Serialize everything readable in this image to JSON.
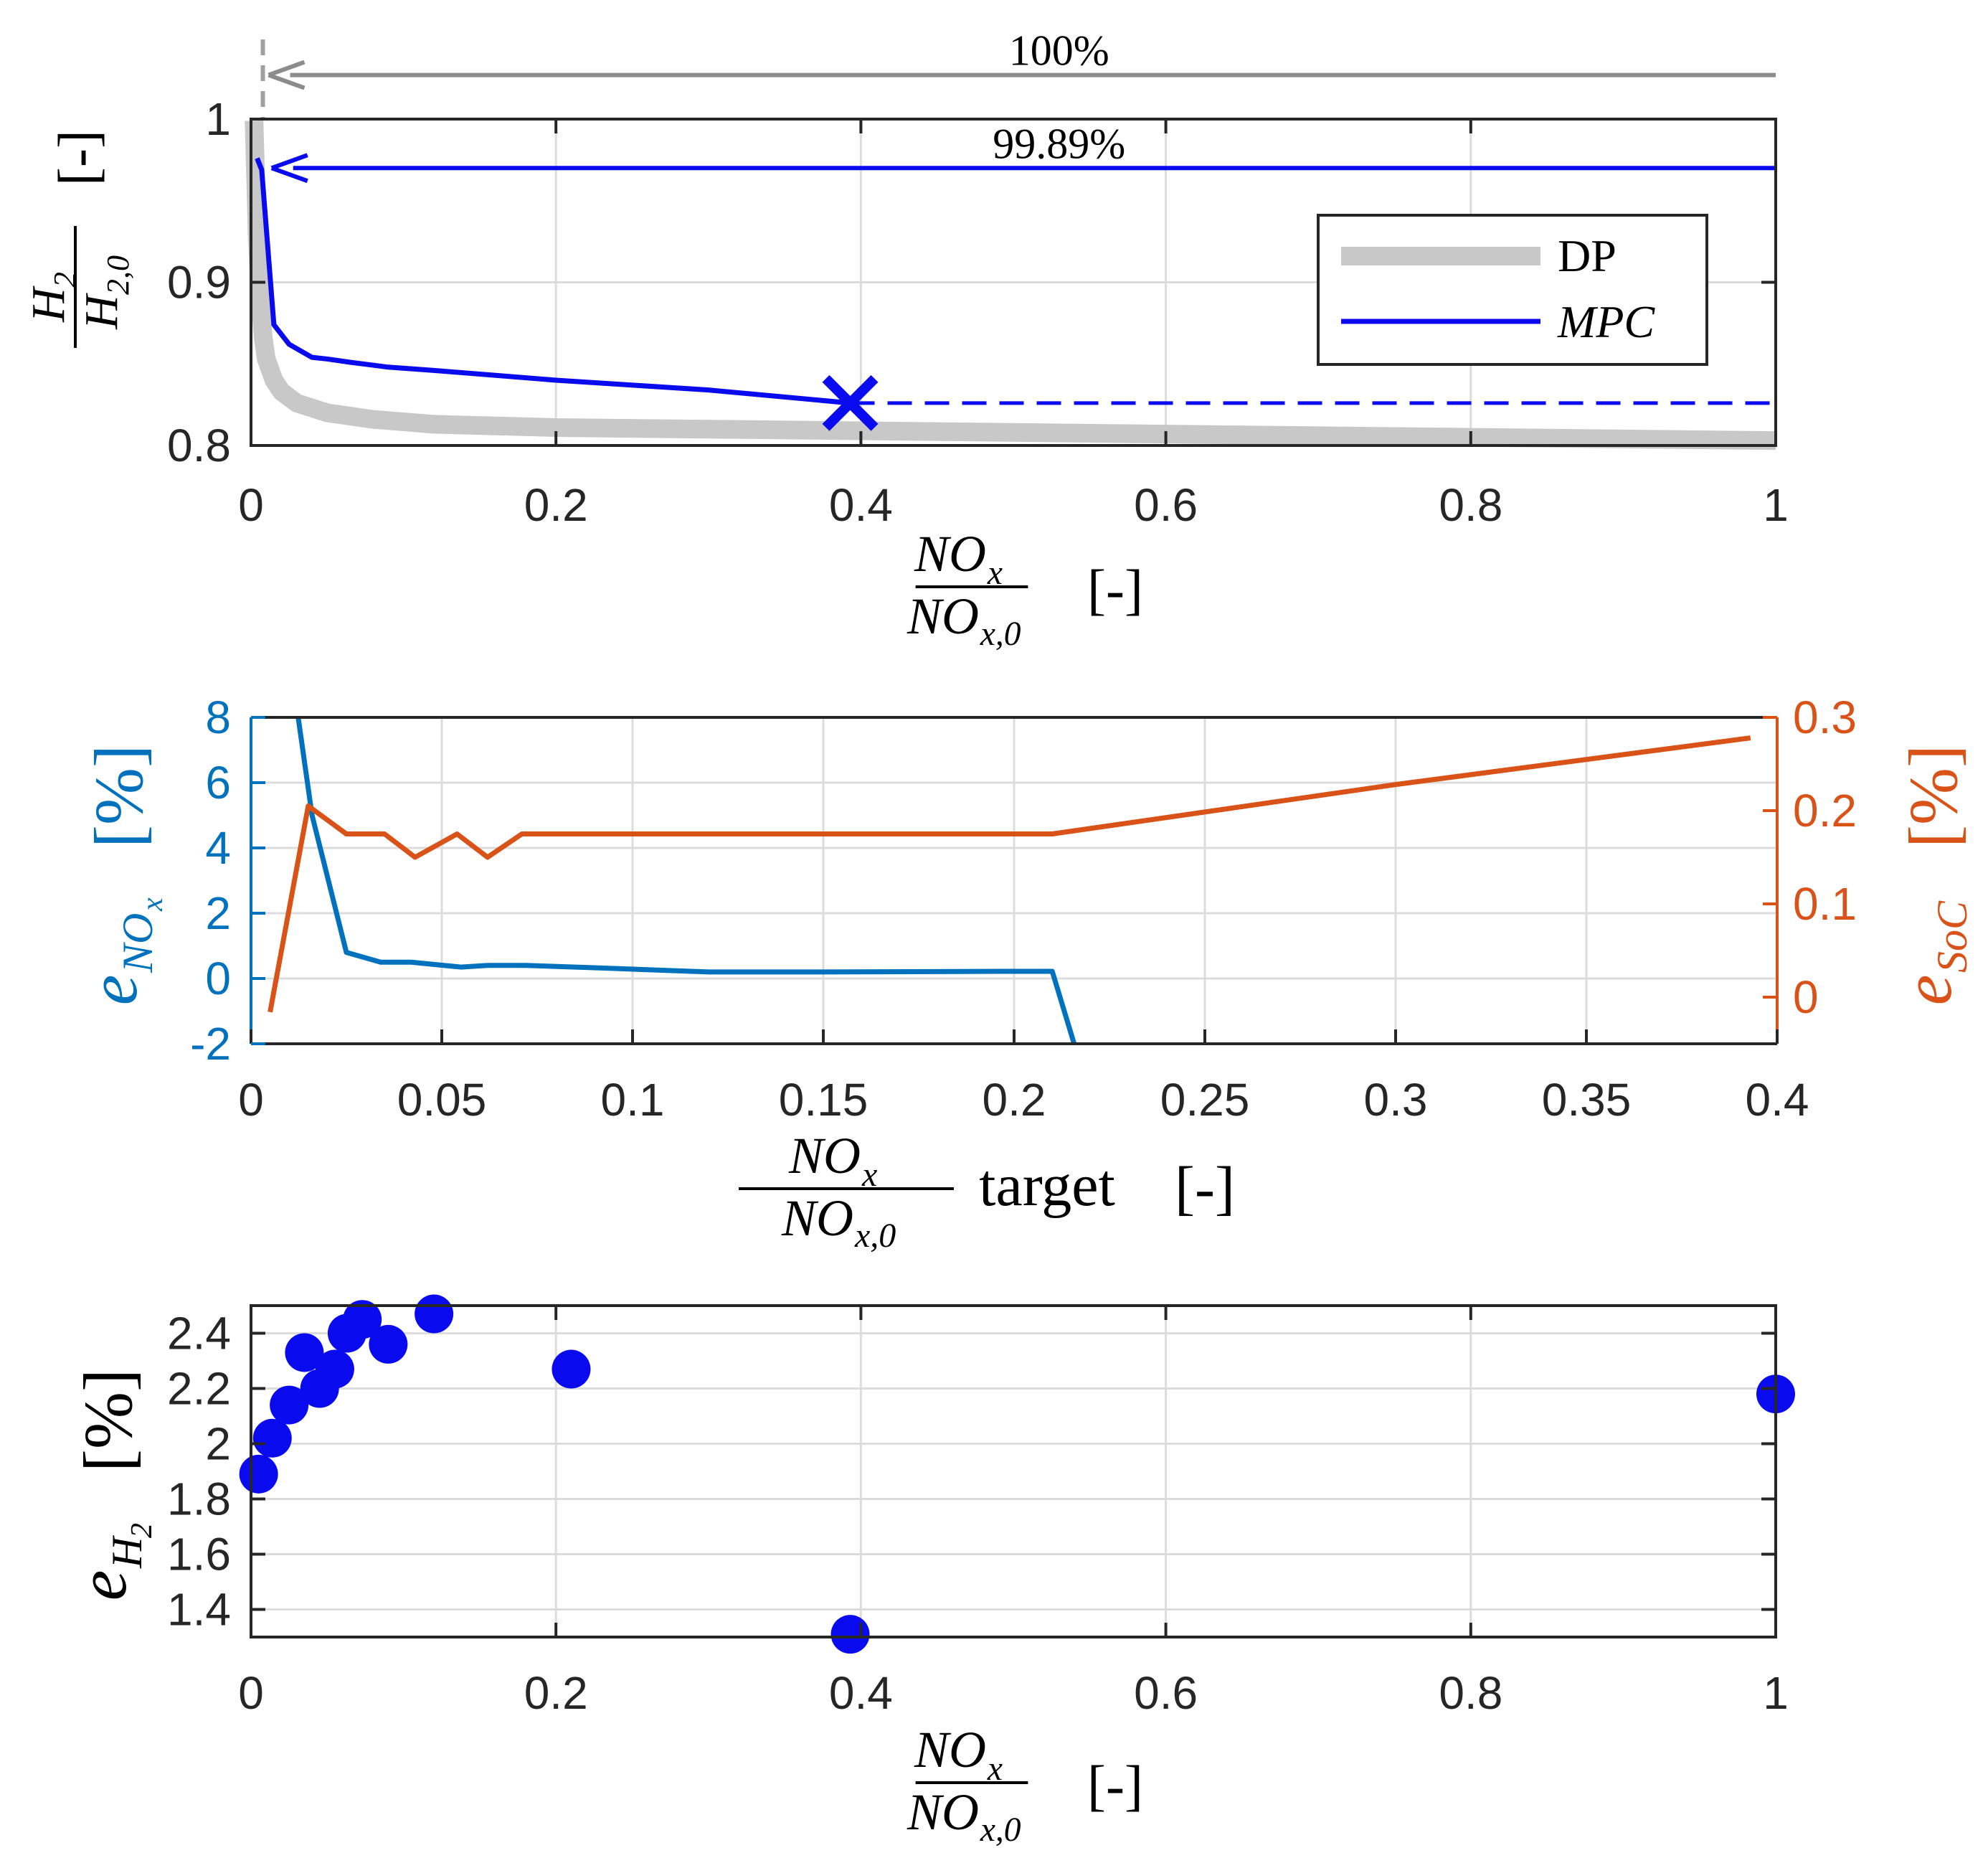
{
  "chart_data": [
    {
      "id": "top",
      "type": "line",
      "xlim": [
        0,
        1
      ],
      "ylim": [
        0.8,
        1.0
      ],
      "xticks": [
        "0",
        "0.2",
        "0.4",
        "0.6",
        "0.8",
        "1"
      ],
      "yticks": [
        "0.8",
        "0.9",
        "1"
      ],
      "xlabel": {
        "num": "NO",
        "num_sub": "x",
        "den": "NO",
        "den_sub": "x,0",
        "unit": "[-]"
      },
      "ylabel": {
        "num": "H",
        "num_sub": "2",
        "den": "H",
        "den_sub": "2,0",
        "unit": "[-]"
      },
      "grid": true,
      "legend": {
        "placement": "top-right",
        "entries": [
          "DP",
          "MPC"
        ]
      },
      "series": [
        {
          "name": "DP",
          "color": "#c8c8c8",
          "x": [
            0.002,
            0.004,
            0.006,
            0.008,
            0.01,
            0.015,
            0.02,
            0.03,
            0.05,
            0.08,
            0.12,
            0.2,
            0.3,
            0.4,
            0.5,
            0.6,
            0.7,
            0.8,
            0.9,
            1.0
          ],
          "y": [
            0.999,
            0.93,
            0.89,
            0.866,
            0.853,
            0.84,
            0.833,
            0.826,
            0.82,
            0.816,
            0.813,
            0.811,
            0.81,
            0.809,
            0.808,
            0.807,
            0.806,
            0.805,
            0.804,
            0.803
          ]
        },
        {
          "name": "MPC",
          "color": "#0a0aee",
          "x": [
            0.004,
            0.007,
            0.015,
            0.025,
            0.04,
            0.05,
            0.065,
            0.09,
            0.12,
            0.2,
            0.3,
            0.393
          ],
          "y": [
            0.976,
            0.969,
            0.874,
            0.862,
            0.854,
            0.853,
            0.851,
            0.848,
            0.846,
            0.84,
            0.834,
            0.826
          ]
        }
      ],
      "mpc_extension_y": 0.826,
      "marker_x": {
        "x": 0.393,
        "y": 0.826
      },
      "annotations": [
        {
          "text": "100%",
          "y": 1.027,
          "x_from": 1.0,
          "x_to": 0.004,
          "color": "#8c8c8c"
        },
        {
          "text": "99.89%",
          "y": 0.97,
          "x_from": 1.0,
          "x_to": 0.006,
          "color": "#0a0aee"
        }
      ],
      "reference_x": 0.004
    },
    {
      "id": "middle",
      "type": "line",
      "xlim": [
        0,
        0.4
      ],
      "ylim_left": [
        -2,
        8
      ],
      "ylim_right": [
        -0.05,
        0.3
      ],
      "xticks": [
        "0",
        "0.05",
        "0.1",
        "0.15",
        "0.2",
        "0.25",
        "0.3",
        "0.35",
        "0.4"
      ],
      "yticks_left": [
        "-2",
        "0",
        "2",
        "4",
        "6",
        "8"
      ],
      "yticks_right": [
        "0",
        "0.1",
        "0.2",
        "0.3"
      ],
      "xlabel": {
        "num": "NO",
        "num_sub": "x",
        "den": "NO",
        "den_sub": "x,0",
        "word": "target",
        "unit": "[-]"
      },
      "ylabel_left": {
        "base": "e",
        "sub": "NO",
        "sub_sub": "x",
        "unit": "[%]"
      },
      "ylabel_right": {
        "base": "e",
        "sub": "SoC",
        "unit": "[%]"
      },
      "grid": true,
      "series": [
        {
          "name": "eNOx",
          "axis": "left",
          "color": "#0072bd",
          "x": [
            0.012,
            0.016,
            0.025,
            0.034,
            0.042,
            0.055,
            0.062,
            0.072,
            0.09,
            0.12,
            0.15,
            0.2,
            0.21,
            0.216
          ],
          "y": [
            8.3,
            5.0,
            0.8,
            0.5,
            0.5,
            0.35,
            0.4,
            0.4,
            0.33,
            0.2,
            0.2,
            0.22,
            0.22,
            -2.1
          ]
        },
        {
          "name": "eSoC",
          "axis": "right",
          "color": "#d95319",
          "x": [
            0.005,
            0.015,
            0.025,
            0.035,
            0.043,
            0.054,
            0.062,
            0.071,
            0.1,
            0.15,
            0.21,
            0.3,
            0.393
          ],
          "y": [
            -0.016,
            0.205,
            0.175,
            0.175,
            0.15,
            0.175,
            0.15,
            0.175,
            0.175,
            0.175,
            0.175,
            0.228,
            0.278
          ]
        }
      ]
    },
    {
      "id": "bottom",
      "type": "scatter",
      "xlim": [
        0,
        1
      ],
      "ylim": [
        1.3,
        2.5
      ],
      "xticks": [
        "0",
        "0.2",
        "0.4",
        "0.6",
        "0.8",
        "1"
      ],
      "yticks": [
        "1.4",
        "1.6",
        "1.8",
        "2",
        "2.2",
        "2.4"
      ],
      "xlabel": {
        "num": "NO",
        "num_sub": "x",
        "den": "NO",
        "den_sub": "x,0",
        "unit": "[-]"
      },
      "ylabel": {
        "base": "e",
        "sub": "H",
        "sub_sub": "2",
        "unit": "[%]"
      },
      "grid": true,
      "series": [
        {
          "name": "eH2",
          "color": "#0a0aee",
          "x": [
            0.005,
            0.014,
            0.025,
            0.035,
            0.045,
            0.055,
            0.063,
            0.073,
            0.09,
            0.12,
            0.21,
            0.393,
            1.0
          ],
          "y": [
            1.89,
            2.02,
            2.14,
            2.33,
            2.2,
            2.27,
            2.4,
            2.45,
            2.36,
            2.47,
            2.27,
            1.31,
            2.18
          ]
        }
      ]
    }
  ]
}
